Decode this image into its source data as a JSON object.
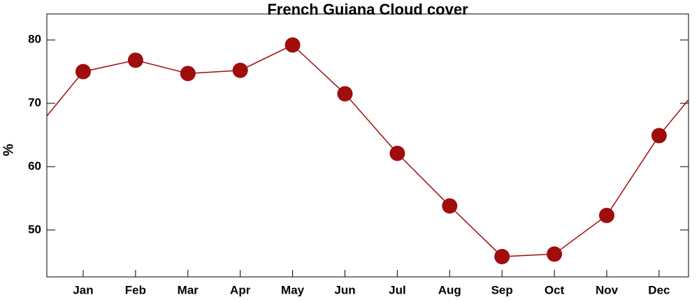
{
  "chart_data": {
    "type": "line",
    "title": "French Guiana Cloud cover",
    "y_label": "%",
    "categories": [
      "Jan",
      "Feb",
      "Mar",
      "Apr",
      "May",
      "Jun",
      "Jul",
      "Aug",
      "Sep",
      "Oct",
      "Nov",
      "Dec"
    ],
    "values": [
      75.0,
      76.8,
      74.7,
      75.2,
      79.2,
      71.5,
      62.1,
      53.8,
      45.8,
      46.2,
      52.3,
      64.9
    ],
    "color": "#a00d0d",
    "ylim": [
      42.6,
      84.1
    ],
    "yticks": [
      50,
      60,
      70,
      80
    ]
  }
}
